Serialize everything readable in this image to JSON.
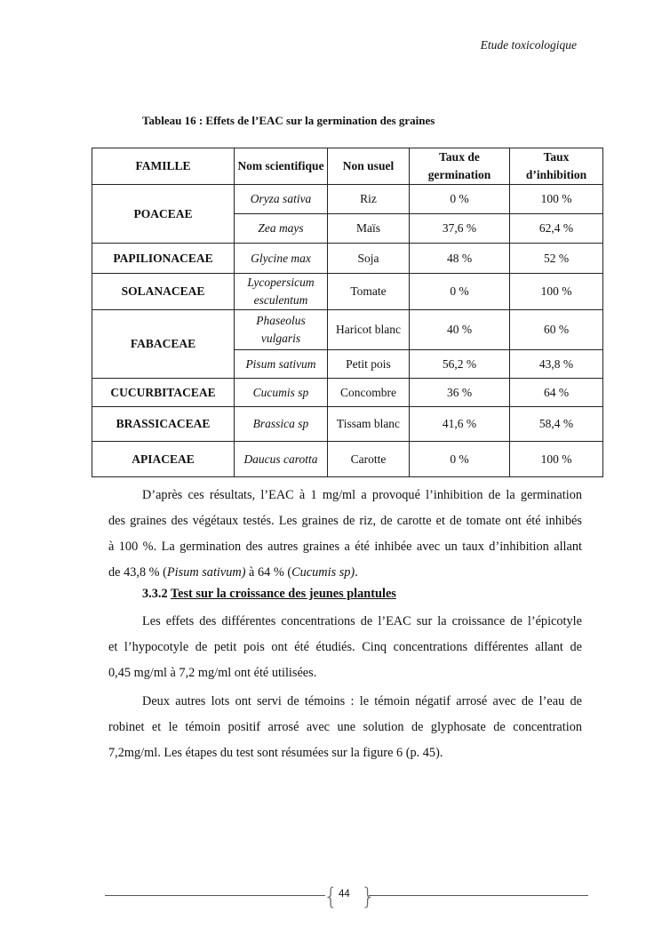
{
  "header": "Etude toxicologique",
  "caption": "Tableau 16 : Effets de l’EAC sur la germination des graines",
  "table": {
    "headers": [
      "FAMILLE",
      "Nom scientifique",
      "Non usuel",
      "Taux de germination",
      "Taux d’inhibition"
    ],
    "rows": [
      {
        "famille": "POACEAE",
        "nom": "Oryza sativa",
        "usuel": "Riz",
        "germ": "0 %",
        "inhib": "100 %"
      },
      {
        "famille": "",
        "nom": "Zea mays",
        "usuel": "Maïs",
        "germ": "37,6 %",
        "inhib": "62,4 %"
      },
      {
        "famille": "PAPILIONACEAE",
        "nom": "Glycine max",
        "usuel": "Soja",
        "germ": "48 %",
        "inhib": "52 %"
      },
      {
        "famille": "SOLANACEAE",
        "nom": "Lycopersicum esculentum",
        "usuel": "Tomate",
        "germ": "0 %",
        "inhib": "100 %"
      },
      {
        "famille": "FABACEAE",
        "nom": "Phaseolus vulgaris",
        "usuel": "Haricot blanc",
        "germ": "40 %",
        "inhib": "60 %"
      },
      {
        "famille": "",
        "nom": "Pisum sativum",
        "usuel": "Petit pois",
        "germ": "56,2 %",
        "inhib": "43,8 %"
      },
      {
        "famille": "CUCURBITACEAE",
        "nom": "Cucumis sp",
        "usuel": "Concombre",
        "germ": "36 %",
        "inhib": "64 %"
      },
      {
        "famille": "BRASSICACEAE",
        "nom": "Brassica sp",
        "usuel": "Tissam blanc",
        "germ": "41,6 %",
        "inhib": "58,4 %"
      },
      {
        "famille": "APIACEAE",
        "nom": "Daucus carotta",
        "usuel": "Carotte",
        "germ": "0 %",
        "inhib": "100 %"
      }
    ]
  },
  "para1": {
    "l1": "D’après ces résultats, l’EAC à 1 mg/ml a provoqué l’inhibition de la germination",
    "l2": "des graines des végétaux testés. Les graines de riz, de carotte et de tomate ont été inhibés",
    "l3": "à 100 %.  La germination des autres graines a été inhibée avec un taux d’inhibition allant",
    "l4a": "de 43,8 % (",
    "l4b": "Pisum sativum)",
    "l4c": " à 64 % (",
    "l4d": "Cucumis sp)",
    "l4e": "."
  },
  "heading": {
    "number": "3.3.2",
    "title": "Test sur la croissance des jeunes plantules"
  },
  "para2": {
    "l1": "Les effets des différentes concentrations de l’EAC sur la croissance de l’épicotyle",
    "l2": "et l’hypocotyle de petit pois ont été étudiés. Cinq concentrations différentes allant de",
    "l3": "0,45 mg/ml à 7,2 mg/ml ont été utilisées."
  },
  "para3": {
    "l1": "Deux autres lots ont servi de témoins : le témoin négatif arrosé avec de l’eau de",
    "l2": "robinet et le témoin positif arrosé avec une solution de glyphosate de concentration",
    "l3": "7,2mg/ml. Les étapes du test sont résumées sur la figure 6 (p. 45)."
  },
  "footer": {
    "page": "44"
  }
}
